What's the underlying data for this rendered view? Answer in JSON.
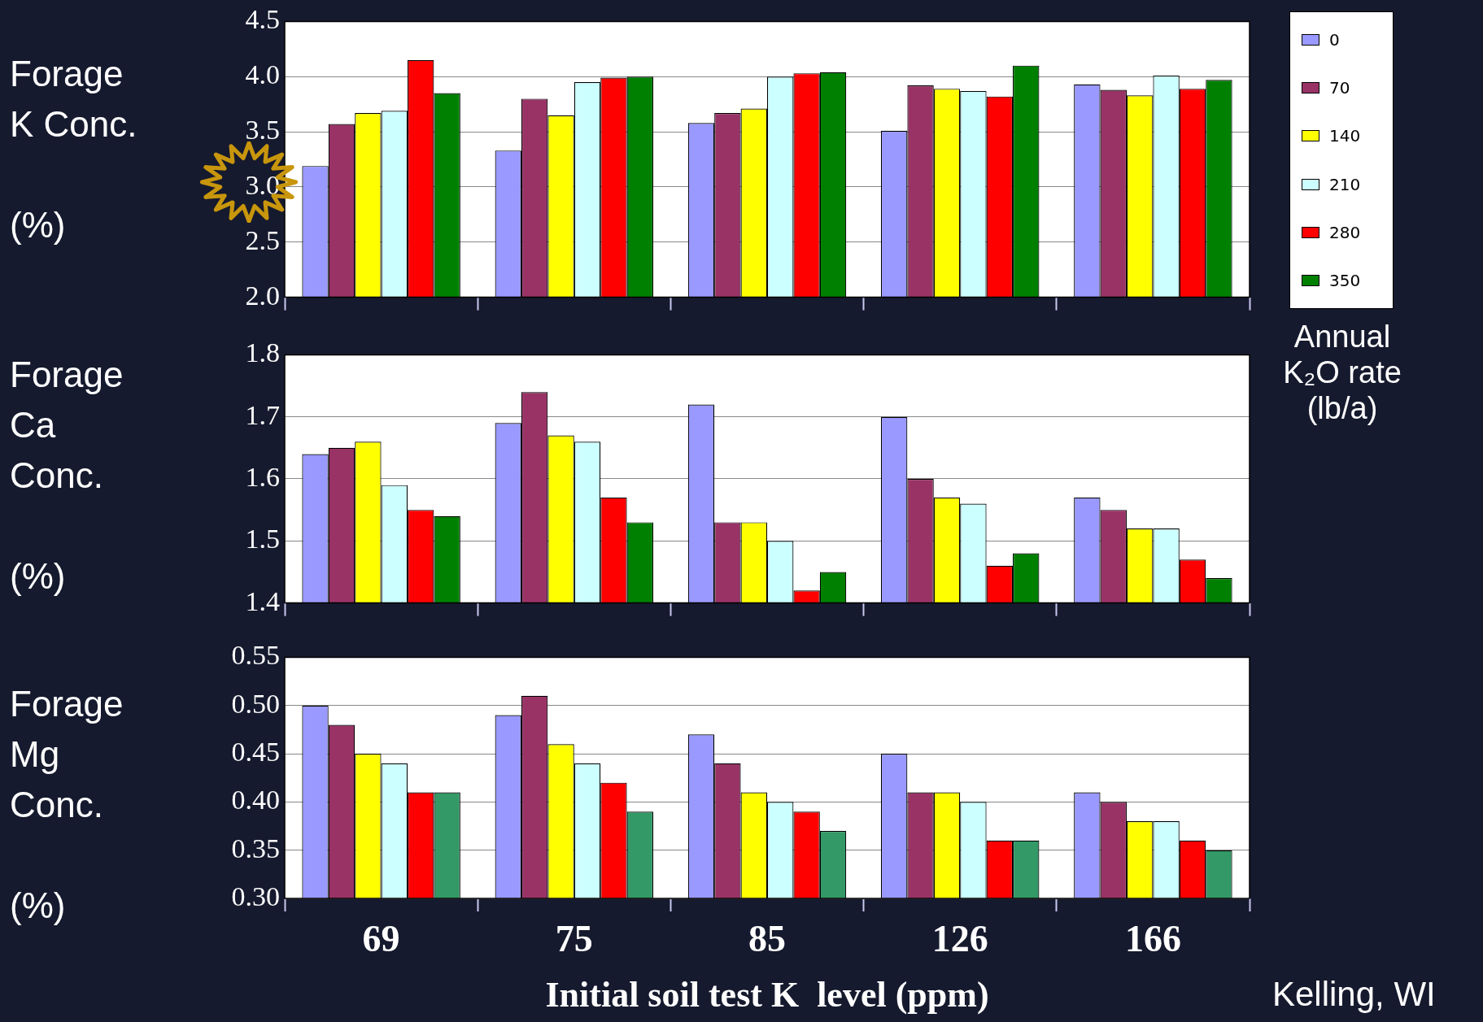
{
  "chart_data": [
    {
      "type": "bar",
      "ylabel": "Forage\nK Conc.\n\n(%)",
      "categories": [
        "69",
        "75",
        "85",
        "126",
        "166"
      ],
      "ylim": [
        2.0,
        4.5
      ],
      "yticks": [
        {
          "value": 2,
          "label": "2.0"
        },
        {
          "value": 2.5,
          "label": "2.5"
        },
        {
          "value": 3,
          "label": "3.0"
        },
        {
          "value": 3.5,
          "label": "3.5"
        },
        {
          "value": 4,
          "label": "4.0"
        },
        {
          "value": 4.5,
          "label": "4.5"
        }
      ],
      "grid": "y",
      "tick_labels": "y",
      "legend": "right",
      "legend_title": "Annual\nK₂O rate\n(lb/a)",
      "series": [
        {
          "name": "0",
          "color": "#9999ff",
          "values": [
            3.19,
            3.33,
            3.58,
            3.51,
            3.93
          ]
        },
        {
          "name": "70",
          "color": "#993366",
          "values": [
            3.57,
            3.8,
            3.67,
            3.92,
            3.88
          ]
        },
        {
          "name": "140",
          "color": "#ffff00",
          "values": [
            3.67,
            3.65,
            3.71,
            3.89,
            3.83
          ]
        },
        {
          "name": "210",
          "color": "#ccffff",
          "values": [
            3.69,
            3.95,
            4.0,
            3.87,
            4.01
          ]
        },
        {
          "name": "280",
          "color": "#ff0000",
          "values": [
            4.15,
            3.99,
            4.03,
            3.82,
            3.89
          ]
        },
        {
          "name": "350",
          "color": "#008000",
          "values": [
            3.85,
            4.0,
            4.04,
            4.1,
            3.97
          ]
        }
      ]
    },
    {
      "type": "bar",
      "ylabel": "Forage\nCa\nConc.\n\n(%)",
      "categories": [
        "69",
        "75",
        "85",
        "126",
        "166"
      ],
      "ylim": [
        1.4,
        1.8
      ],
      "yticks": [
        1.4,
        1.5,
        1.6,
        1.7,
        1.8
      ],
      "grid": "y",
      "tick_labels": "y",
      "series": [
        {
          "color": "#9999ff",
          "values": [
            1.64,
            1.69,
            1.72,
            1.7,
            1.57
          ]
        },
        {
          "color": "#993366",
          "values": [
            1.65,
            1.74,
            1.53,
            1.6,
            1.55
          ]
        },
        {
          "color": "#ffff00",
          "values": [
            1.66,
            1.67,
            1.53,
            1.57,
            1.52
          ]
        },
        {
          "color": "#ccffff",
          "values": [
            1.59,
            1.66,
            1.5,
            1.56,
            1.52
          ]
        },
        {
          "color": "#ff0000",
          "values": [
            1.55,
            1.57,
            1.42,
            1.46,
            1.47
          ]
        },
        {
          "color": "#008000",
          "values": [
            1.54,
            1.53,
            1.45,
            1.48,
            1.44
          ]
        }
      ]
    },
    {
      "type": "bar",
      "ylabel": "Forage\nMg\nConc.\n\n(%)",
      "xlabel": "Initial soil test K  level (ppm)",
      "annotations": [
        "Kelling, WI"
      ],
      "categories": [
        "69",
        "75",
        "85",
        "126",
        "166"
      ],
      "ylim": [
        0.3,
        0.55
      ],
      "yticks": [
        {
          "value": 0.3,
          "label": "0.30"
        },
        {
          "value": 0.35,
          "label": "0.35"
        },
        {
          "value": 0.4,
          "label": "0.40"
        },
        {
          "value": 0.45,
          "label": "0.45"
        },
        {
          "value": 0.5,
          "label": "0.50"
        },
        {
          "value": 0.55,
          "label": "0.55"
        }
      ],
      "grid": "y",
      "series": [
        {
          "color": "#9999ff",
          "values": [
            0.5,
            0.49,
            0.47,
            0.45,
            0.41
          ]
        },
        {
          "color": "#993366",
          "values": [
            0.48,
            0.51,
            0.44,
            0.41,
            0.4
          ]
        },
        {
          "color": "#ffff00",
          "values": [
            0.45,
            0.46,
            0.41,
            0.41,
            0.38
          ]
        },
        {
          "color": "#ccffff",
          "values": [
            0.44,
            0.44,
            0.4,
            0.4,
            0.38
          ]
        },
        {
          "color": "#ff0000",
          "values": [
            0.41,
            0.42,
            0.39,
            0.36,
            0.36
          ]
        },
        {
          "color": "#339966",
          "values": [
            0.41,
            0.39,
            0.37,
            0.36,
            0.35
          ]
        }
      ]
    }
  ]
}
